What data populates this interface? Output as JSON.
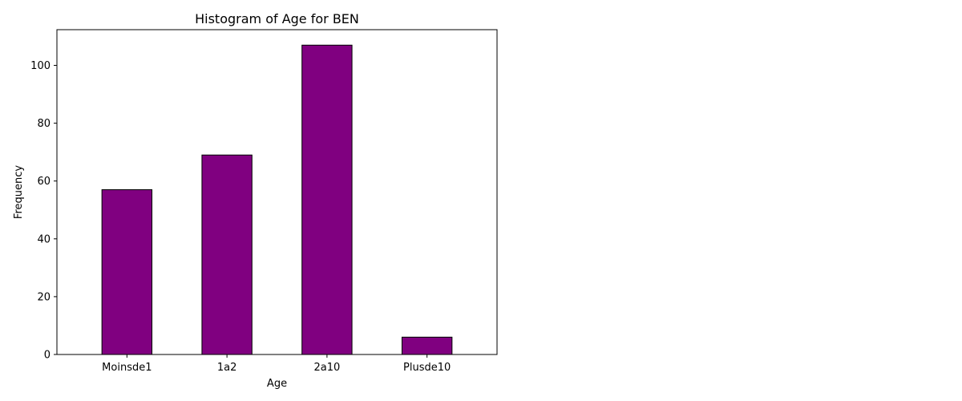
{
  "chart_data": {
    "type": "bar",
    "title": "Histogram of Age for BEN",
    "xlabel": "Age",
    "ylabel": "Frequency",
    "categories": [
      "Moinsde1",
      "1a2",
      "2a10",
      "Plusde10"
    ],
    "values": [
      57,
      69,
      107,
      6
    ],
    "ylim": [
      0,
      112.35
    ],
    "yticks": [
      0,
      20,
      40,
      60,
      80,
      100
    ],
    "bar_color": "#800080",
    "edge_color": "#000000",
    "grid": false
  }
}
